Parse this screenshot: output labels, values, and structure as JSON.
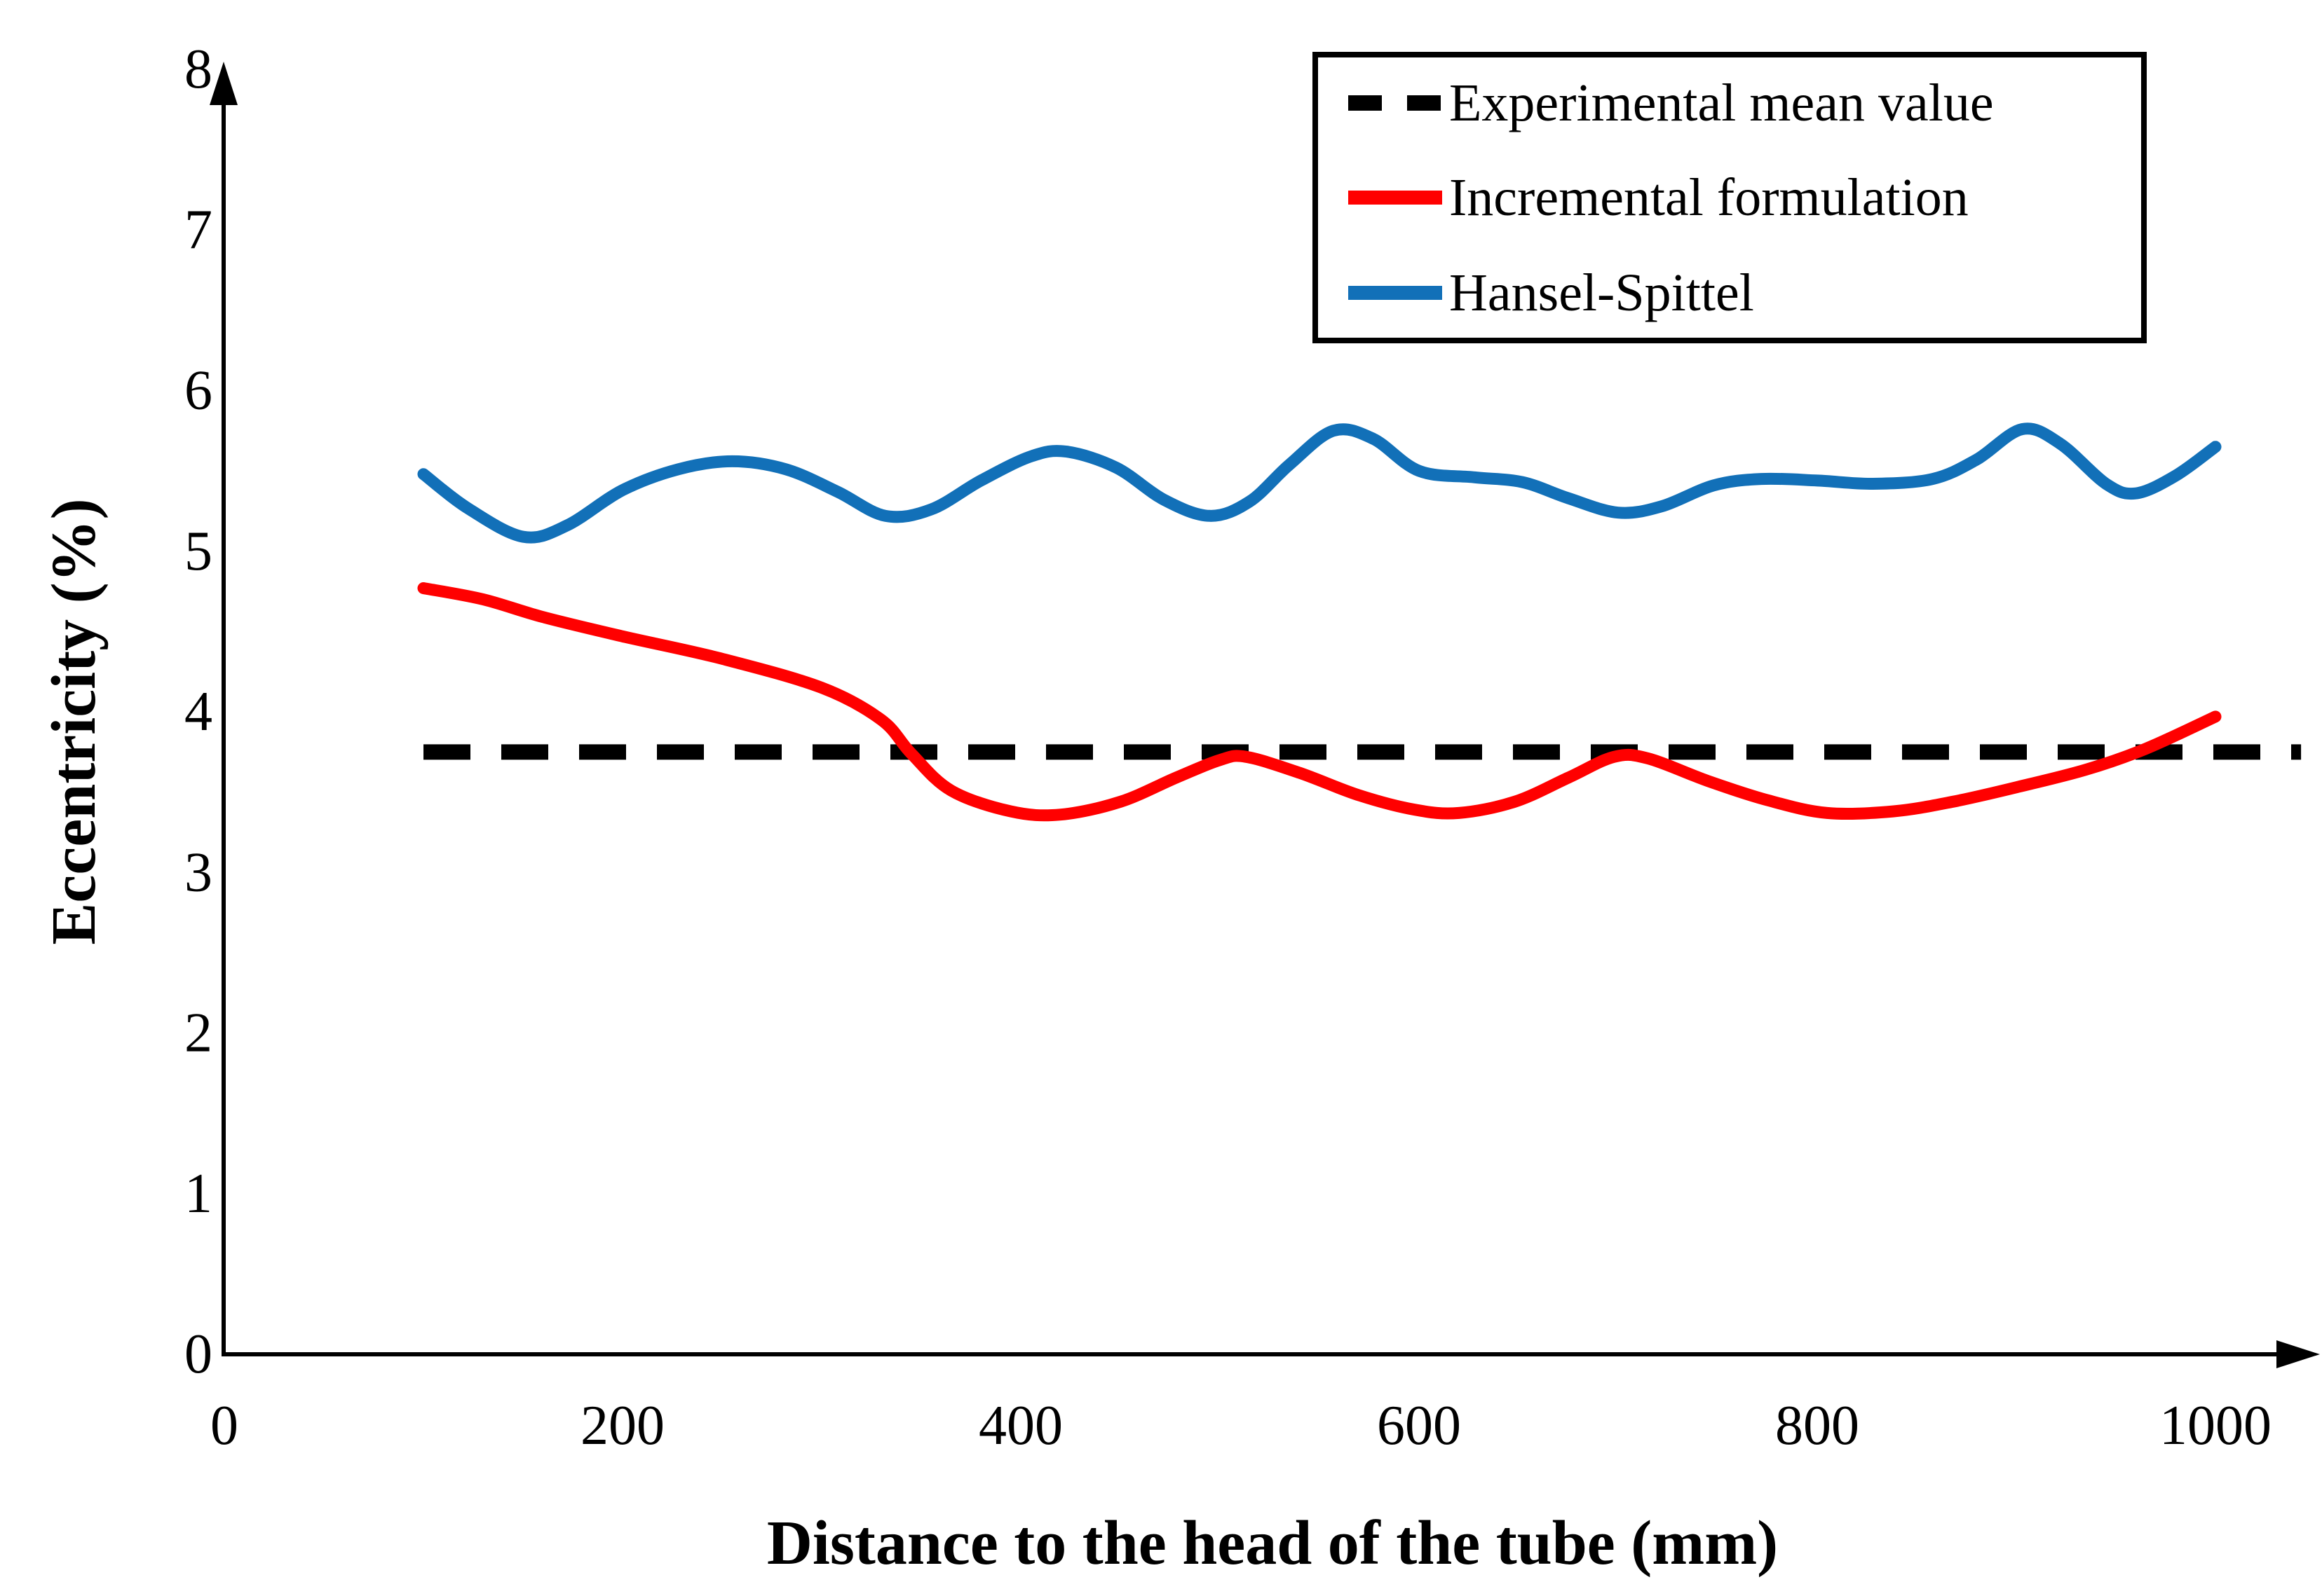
{
  "chart_data": {
    "type": "line",
    "title": "",
    "xlabel": "Distance to the head of the tube (mm)",
    "ylabel": "Eccentricity (%)",
    "xlim": [
      0,
      1000
    ],
    "ylim": [
      0,
      8
    ],
    "x_ticks": [
      0,
      200,
      400,
      600,
      800,
      1000
    ],
    "y_ticks": [
      0,
      1,
      2,
      3,
      4,
      5,
      6,
      7,
      8
    ],
    "grid": false,
    "legend_position": "top-right",
    "background_color": "#ffffff",
    "axis_color": "#000000",
    "series": [
      {
        "name": "Experimental mean value",
        "color": "#000000",
        "style": "dashed",
        "kind": "constant",
        "mean_value": 3.75,
        "x_start": 100,
        "x_end": 1043
      },
      {
        "name": "Incremental formulation",
        "color": "#ff0000",
        "style": "solid",
        "kind": "curve",
        "points": [
          [
            100,
            4.77
          ],
          [
            130,
            4.7
          ],
          [
            160,
            4.59
          ],
          [
            200,
            4.47
          ],
          [
            250,
            4.33
          ],
          [
            300,
            4.15
          ],
          [
            330,
            3.95
          ],
          [
            345,
            3.74
          ],
          [
            365,
            3.51
          ],
          [
            395,
            3.38
          ],
          [
            420,
            3.36
          ],
          [
            450,
            3.44
          ],
          [
            478,
            3.59
          ],
          [
            500,
            3.7
          ],
          [
            513,
            3.72
          ],
          [
            540,
            3.62
          ],
          [
            570,
            3.48
          ],
          [
            598,
            3.39
          ],
          [
            620,
            3.37
          ],
          [
            648,
            3.44
          ],
          [
            675,
            3.59
          ],
          [
            698,
            3.72
          ],
          [
            715,
            3.71
          ],
          [
            745,
            3.57
          ],
          [
            775,
            3.45
          ],
          [
            805,
            3.37
          ],
          [
            838,
            3.38
          ],
          [
            868,
            3.44
          ],
          [
            900,
            3.53
          ],
          [
            935,
            3.64
          ],
          [
            965,
            3.77
          ],
          [
            1000,
            3.97
          ]
        ]
      },
      {
        "name": "Hansel-Spittel",
        "color": "#1270b8",
        "style": "solid",
        "kind": "curve",
        "points": [
          [
            100,
            5.48
          ],
          [
            122,
            5.27
          ],
          [
            150,
            5.09
          ],
          [
            172,
            5.16
          ],
          [
            200,
            5.38
          ],
          [
            228,
            5.51
          ],
          [
            255,
            5.56
          ],
          [
            282,
            5.51
          ],
          [
            308,
            5.37
          ],
          [
            332,
            5.22
          ],
          [
            355,
            5.26
          ],
          [
            380,
            5.44
          ],
          [
            405,
            5.59
          ],
          [
            423,
            5.62
          ],
          [
            448,
            5.52
          ],
          [
            472,
            5.32
          ],
          [
            495,
            5.22
          ],
          [
            515,
            5.31
          ],
          [
            535,
            5.54
          ],
          [
            557,
            5.75
          ],
          [
            577,
            5.7
          ],
          [
            600,
            5.5
          ],
          [
            628,
            5.46
          ],
          [
            652,
            5.43
          ],
          [
            675,
            5.33
          ],
          [
            700,
            5.24
          ],
          [
            722,
            5.28
          ],
          [
            748,
            5.41
          ],
          [
            772,
            5.45
          ],
          [
            800,
            5.44
          ],
          [
            828,
            5.42
          ],
          [
            858,
            5.45
          ],
          [
            880,
            5.57
          ],
          [
            903,
            5.76
          ],
          [
            922,
            5.67
          ],
          [
            945,
            5.42
          ],
          [
            960,
            5.36
          ],
          [
            980,
            5.47
          ],
          [
            1000,
            5.65
          ]
        ]
      }
    ]
  }
}
